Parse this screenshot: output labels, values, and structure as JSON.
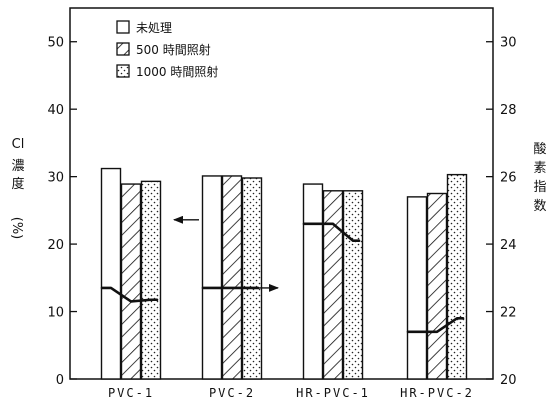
{
  "chart_data": {
    "type": "bar",
    "categories": [
      "PVC-1",
      "PVC-2",
      "HR-PVC-1",
      "HR-PVC-2"
    ],
    "series": [
      {
        "name": "未処理",
        "pattern": "plain",
        "values": [
          31.2,
          30.1,
          28.9,
          27.0
        ]
      },
      {
        "name": "500 時間照射",
        "pattern": "hatch",
        "values": [
          28.9,
          30.1,
          27.9,
          27.5
        ]
      },
      {
        "name": "1000 時間照射",
        "pattern": "dots",
        "values": [
          29.3,
          29.8,
          27.9,
          30.3
        ]
      }
    ],
    "line_segments": [
      {
        "category": "PVC-1",
        "values": [
          22.7,
          22.3,
          22.35
        ]
      },
      {
        "category": "PVC-2",
        "values": [
          22.7,
          22.7,
          22.7
        ]
      },
      {
        "category": "HR-PVC-1",
        "values": [
          24.6,
          24.6,
          24.1
        ]
      },
      {
        "category": "HR-PVC-2",
        "values": [
          21.4,
          21.4,
          21.8
        ]
      }
    ],
    "ylabel_left": [
      "Cl",
      "濃",
      "度",
      "(%)"
    ],
    "ylabel_right": [
      "酸",
      "素",
      "指",
      "数"
    ],
    "ylim_left": [
      0,
      55
    ],
    "ylim_right": [
      20,
      31
    ],
    "yticks_left": [
      0,
      10,
      20,
      30,
      40,
      50
    ],
    "yticks_right": [
      20,
      22,
      24,
      26,
      28,
      30
    ],
    "left_arrow_category": "PVC-2",
    "right_arrow_category": "PVC-2",
    "legend_position": "top-left",
    "grid": false
  }
}
